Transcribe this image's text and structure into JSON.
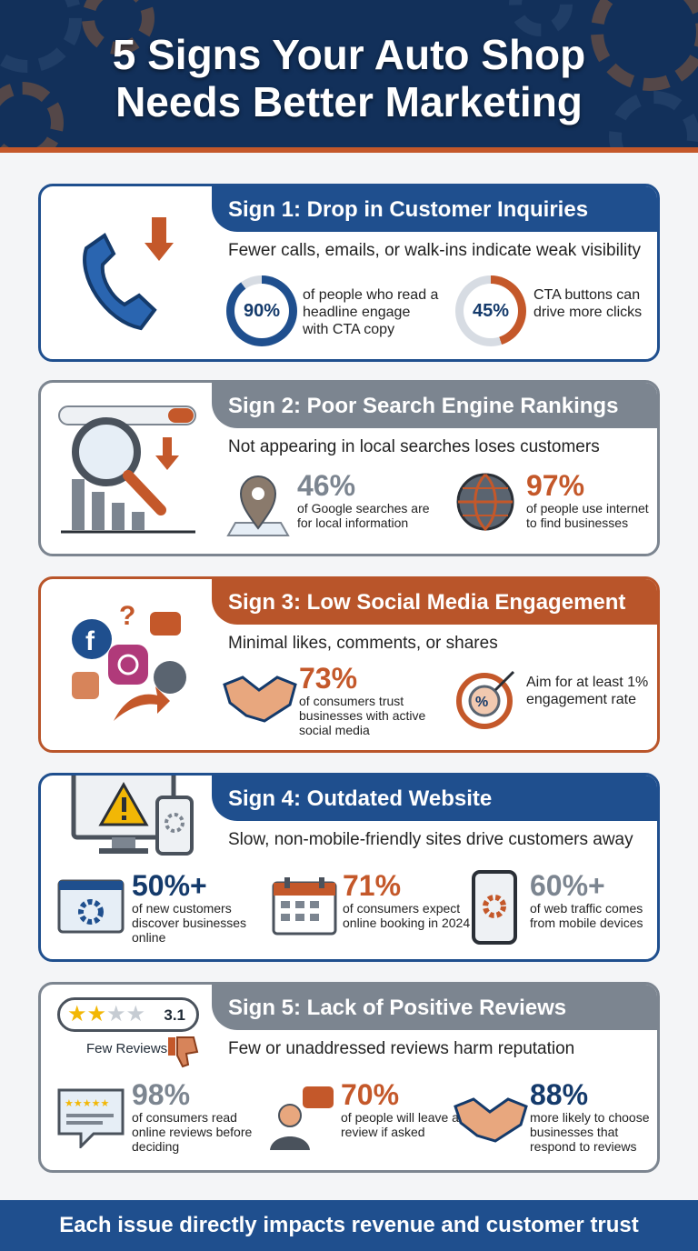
{
  "header": {
    "title_line1": "5 Signs Your Auto Shop",
    "title_line2": "Needs Better Marketing"
  },
  "colors": {
    "navy": "#12305a",
    "blue": "#1f4f8e",
    "orange": "#c4582a",
    "gray": "#7c8590"
  },
  "sign1": {
    "title": "Sign 1: Drop in Customer Inquiries",
    "desc": "Fewer calls, emails, or walk-ins indicate weak visibility",
    "stat1": {
      "value": "90%",
      "fraction": 0.9,
      "text": "of people who read a headline engage with CTA copy"
    },
    "stat2": {
      "value": "45%",
      "fraction": 0.45,
      "text": "CTA buttons can drive more clicks"
    }
  },
  "sign2": {
    "title": "Sign 2: Poor Search Engine Rankings",
    "desc": "Not appearing in local searches loses customers",
    "stat1": {
      "value": "46%",
      "text": "of Google searches are for local information"
    },
    "stat2": {
      "value": "97%",
      "text": "of people use internet to find businesses"
    }
  },
  "sign3": {
    "title": "Sign 3: Low Social Media Engagement",
    "desc": "Minimal likes, comments, or shares",
    "stat1": {
      "value": "73%",
      "text": "of consumers trust businesses with active social media"
    },
    "stat2": {
      "text": "Aim for at least 1% engagement rate"
    }
  },
  "sign4": {
    "title": "Sign 4: Outdated Website",
    "desc": "Slow, non-mobile-friendly sites drive customers away",
    "stat1": {
      "value": "50%+",
      "text": "of new customers discover businesses online"
    },
    "stat2": {
      "value": "71%",
      "text": "of consumers expect online booking in 2024"
    },
    "stat3": {
      "value": "60%+",
      "text": "of web traffic comes from mobile devices"
    }
  },
  "sign5": {
    "title": "Sign 5: Lack of Positive Reviews",
    "desc": "Few or unaddressed reviews harm reputation",
    "rating": "3.1",
    "rating_stars": 2,
    "few_reviews": "Few Reviews",
    "stat1": {
      "value": "98%",
      "text": "of consumers read online reviews before deciding"
    },
    "stat2": {
      "value": "70%",
      "text": "of people will leave a review if asked"
    },
    "stat3": {
      "value": "88%",
      "text": "more likely to choose businesses that respond to reviews"
    }
  },
  "footer": {
    "text": "Each issue directly impacts revenue and customer trust"
  }
}
